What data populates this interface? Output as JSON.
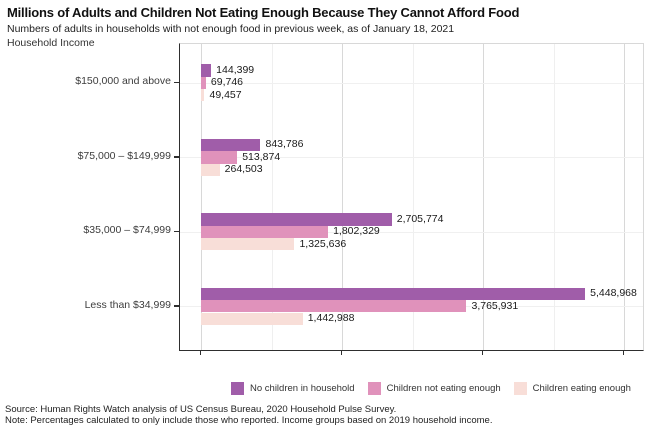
{
  "header": {
    "title": "Millions of Adults and Children Not Eating Enough Because They Cannot Afford Food",
    "subtitle": "Numbers of adults in households with not enough food in previous week, as of January 18, 2021",
    "y_axis_label": "Household Income"
  },
  "chart_data": {
    "type": "bar",
    "orientation": "horizontal",
    "title": "Millions of Adults and Children Not Eating Enough Because They Cannot Afford Food",
    "subtitle": "Numbers of adults in households with not enough food in previous week, as of January 18, 2021",
    "ylabel": "Household Income",
    "xlabel": "",
    "categories": [
      "$150,000 and above",
      "$75,000 – $149,999",
      "$35,000 – $74,999",
      "Less than $34,999"
    ],
    "series": [
      {
        "name": "No children in household",
        "color": "#a05da9",
        "values": [
          144399,
          843786,
          2705774,
          5448968
        ]
      },
      {
        "name": "Children not eating enough",
        "color": "#e092bb",
        "values": [
          69746,
          513874,
          1802329,
          3765931
        ]
      },
      {
        "name": "Children eating enough",
        "color": "#f8ded8",
        "values": [
          49457,
          264503,
          1325636,
          1442988
        ]
      }
    ],
    "xlim": [
      0,
      6300000
    ],
    "xticks": [
      0,
      2000000,
      4000000,
      6000000
    ],
    "minor_xticks": [
      1000000,
      3000000,
      5000000
    ],
    "x_tick_labels_visible": false,
    "grid": "vertical major and minor, faint horizontal at categories",
    "legend_position": "bottom",
    "value_label_format": "comma"
  },
  "footer": {
    "source": "Source: Human Rights Watch analysis of US Census Bureau, 2020 Household Pulse Survey.",
    "note": "Note: Percentages calculated to only include those who reported. Income groups based on 2019 household income."
  }
}
